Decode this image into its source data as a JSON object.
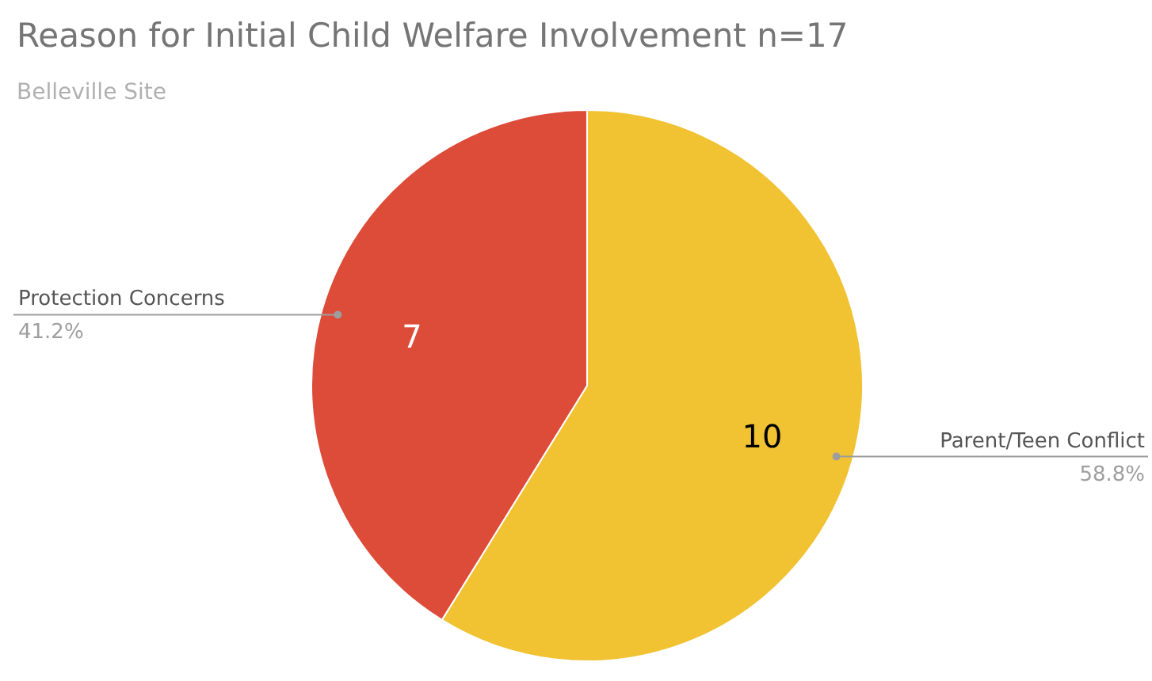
{
  "chart_data": {
    "type": "pie",
    "title": "Reason for Initial Child Welfare Involvement n=17",
    "subtitle": "Belleville Site",
    "categories": [
      "Parent/Teen Conflict",
      "Protection Concerns"
    ],
    "values": [
      10,
      7
    ],
    "colors": [
      "#f1c232",
      "#dd4b39"
    ],
    "value_labels": [
      "10",
      "7"
    ],
    "annotations": [
      "58.8%",
      "41.2%"
    ]
  }
}
